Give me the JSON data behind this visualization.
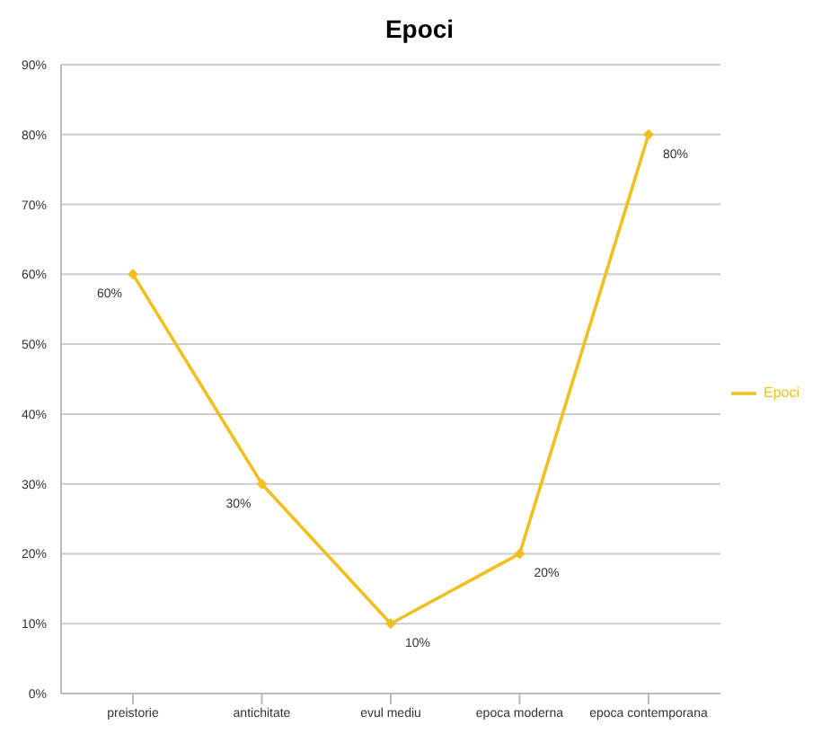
{
  "chart_data": {
    "type": "line",
    "title": "Epoci",
    "categories": [
      "preistorie",
      "antichitate",
      "evul mediu",
      "epoca moderna",
      "epoca contemporana"
    ],
    "series": [
      {
        "name": "Epoci",
        "color": "#f0c020",
        "values": [
          60,
          30,
          10,
          20,
          80
        ],
        "value_labels": [
          "60%",
          "30%",
          "10%",
          "20%",
          "80%"
        ]
      }
    ],
    "ylim": [
      0,
      90
    ],
    "yticks": [
      {
        "value": 0,
        "label": "0%"
      },
      {
        "value": 10,
        "label": "10%"
      },
      {
        "value": 20,
        "label": "20%"
      },
      {
        "value": 30,
        "label": "30%"
      },
      {
        "value": 40,
        "label": "40%"
      },
      {
        "value": 50,
        "label": "50%"
      },
      {
        "value": 60,
        "label": "60%"
      },
      {
        "value": 70,
        "label": "70%"
      },
      {
        "value": 80,
        "label": "80%"
      },
      {
        "value": 90,
        "label": "90%"
      }
    ],
    "grid": "y",
    "legend": "right",
    "marker": "diamond"
  }
}
